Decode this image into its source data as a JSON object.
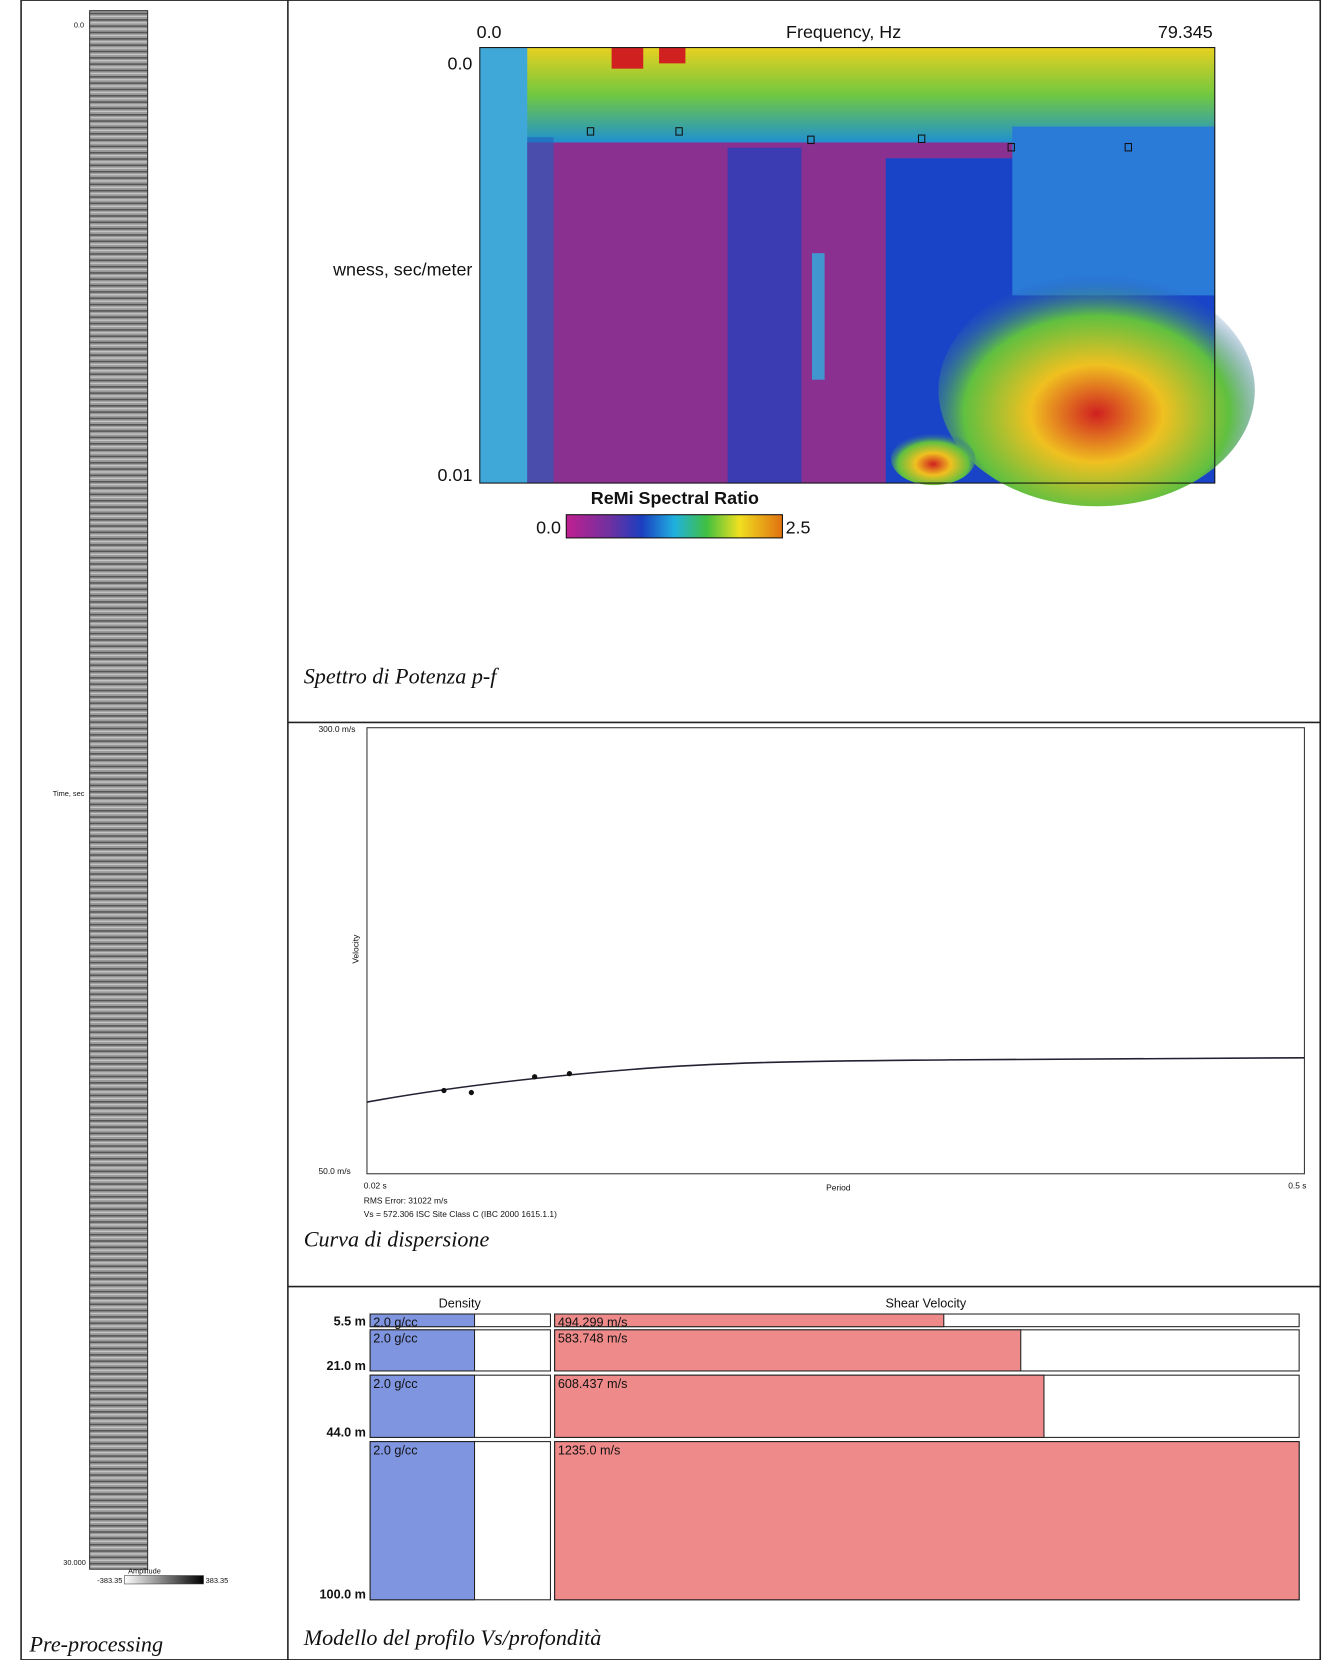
{
  "pre_processing": {
    "y_top": "0.0",
    "y_label": "Time, sec",
    "y_bottom": "30.000",
    "colorbar_label": "Amplitude",
    "colorbar_min": "-383.35",
    "colorbar_max": "383.35",
    "caption": "Pre-processing"
  },
  "spectrum": {
    "x_min": "0.0",
    "x_label": "Frequency, Hz",
    "x_max": "79.345",
    "y_min": "0.0",
    "y_label": "wness, sec/meter",
    "y_max": "0.01",
    "colorbar_label": "ReMi Spectral Ratio",
    "colorbar_min": "0.0",
    "colorbar_max": "2.5",
    "caption": "Spettro di Potenza p-f"
  },
  "dispersion": {
    "y_max": "300.0 m/s",
    "y_min": "50.0 m/s",
    "y_label": "Velocity",
    "x_min": "0.02 s",
    "x_label": "Period",
    "x_max": "0.5 s",
    "rms_error": "RMS Error: 31022 m/s",
    "vs_note": "Vs = 572.306    ISC Site Class C (IBC 2000 1615.1.1)",
    "caption": "Curva di dispersione"
  },
  "profile": {
    "density_label": "Density",
    "velocity_label": "Shear Velocity",
    "layers": [
      {
        "depth": "5.5 m",
        "density": "2.0 g/cc",
        "velocity": "494.299 m/s"
      },
      {
        "depth": "21.0 m",
        "density": "2.0 g/cc",
        "velocity": "583.748 m/s"
      },
      {
        "depth": "44.0 m",
        "density": "2.0 g/cc",
        "velocity": "608.437 m/s"
      },
      {
        "depth": "100.0 m",
        "density": "2.0 g/cc",
        "velocity": "1235.0 m/s"
      }
    ],
    "caption": "Modello del profilo Vs/profondità"
  }
}
